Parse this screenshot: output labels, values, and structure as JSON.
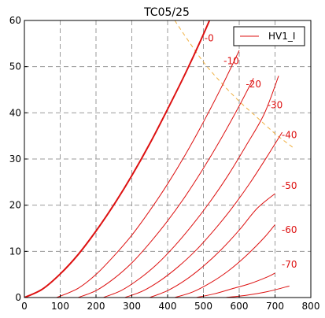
{
  "chart_data": {
    "type": "line",
    "title": "TC05/25",
    "xlabel": "",
    "ylabel": "",
    "xlim": [
      0,
      800
    ],
    "ylim": [
      0,
      60
    ],
    "x_ticks": [
      0,
      100,
      200,
      300,
      400,
      500,
      600,
      700,
      800
    ],
    "y_ticks": [
      0,
      10,
      20,
      30,
      40,
      50,
      60
    ],
    "grid": true,
    "legend": {
      "placement": "top-right",
      "entries": [
        "HV1_I"
      ]
    },
    "colors": {
      "curves": "#dd1111",
      "dissipation": "#f0b040"
    },
    "series": [
      {
        "label": "-0",
        "x": [
          0,
          50,
          100,
          150,
          200,
          250,
          300,
          350,
          400,
          450,
          500,
          550
        ],
        "y": [
          0,
          1.8,
          5.1,
          9.3,
          14.4,
          20.1,
          26.4,
          33.3,
          40.8,
          48.6,
          57.0,
          66.0
        ]
      },
      {
        "label": "-10",
        "x": [
          90,
          150,
          200,
          250,
          300,
          350,
          400,
          450,
          500,
          550,
          600
        ],
        "y": [
          0,
          2.0,
          5.0,
          9.0,
          13.5,
          18.8,
          24.6,
          31.0,
          38.0,
          45.5,
          53.5
        ]
      },
      {
        "label": "-20",
        "x": [
          150,
          200,
          250,
          300,
          350,
          400,
          450,
          500,
          550,
          600,
          640
        ],
        "y": [
          0,
          1.5,
          4.1,
          7.5,
          11.8,
          16.6,
          22.0,
          28.0,
          34.5,
          41.5,
          47.5
        ]
      },
      {
        "label": "-30",
        "x": [
          220,
          270,
          320,
          370,
          420,
          470,
          520,
          570,
          620,
          670,
          710
        ],
        "y": [
          0,
          1.5,
          4.0,
          7.2,
          11.2,
          15.8,
          20.9,
          26.6,
          33.0,
          39.8,
          48.0
        ]
      },
      {
        "label": "-40",
        "x": [
          280,
          330,
          380,
          430,
          480,
          530,
          580,
          630,
          680,
          720
        ],
        "y": [
          0,
          1.4,
          3.7,
          6.7,
          10.3,
          14.6,
          19.4,
          24.8,
          30.8,
          35.8
        ]
      },
      {
        "label": "-50",
        "x": [
          350,
          400,
          450,
          500,
          550,
          600,
          650,
          700
        ],
        "y": [
          0,
          1.5,
          3.8,
          6.8,
          10.4,
          14.6,
          19.3,
          22.5
        ]
      },
      {
        "label": "-60",
        "x": [
          420,
          470,
          520,
          570,
          620,
          670,
          700
        ],
        "y": [
          0,
          1.2,
          3.2,
          5.8,
          9.1,
          13.0,
          15.8
        ]
      },
      {
        "label": "-70",
        "x": [
          480,
          530,
          580,
          630,
          680,
          700
        ],
        "y": [
          0,
          0.8,
          1.9,
          3.0,
          4.5,
          5.3
        ]
      },
      {
        "label": "",
        "x": [
          560,
          620,
          680,
          740
        ],
        "y": [
          0,
          0.5,
          1.3,
          2.5
        ]
      }
    ],
    "curve_labels": [
      {
        "text": "-0",
        "x": 516,
        "y": 55.5
      },
      {
        "text": "-10",
        "x": 578,
        "y": 50.5
      },
      {
        "text": "-20",
        "x": 640,
        "y": 45.5
      },
      {
        "text": "-30",
        "x": 700,
        "y": 41.0
      },
      {
        "text": "-40",
        "x": 740,
        "y": 34.5
      },
      {
        "text": "-50",
        "x": 740,
        "y": 23.5
      },
      {
        "text": "-60",
        "x": 740,
        "y": 14.0
      },
      {
        "text": "-70",
        "x": 740,
        "y": 6.5
      }
    ],
    "dissipation_curve": {
      "x": [
        420,
        450,
        500,
        550,
        600,
        650,
        700,
        750
      ],
      "y": [
        60.0,
        56.5,
        51.0,
        46.5,
        42.5,
        39.0,
        35.5,
        32.5
      ]
    }
  }
}
